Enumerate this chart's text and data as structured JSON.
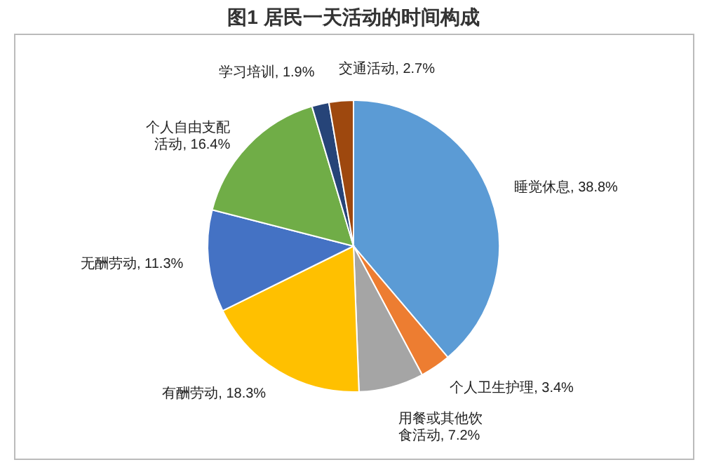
{
  "chart_data": {
    "type": "pie",
    "title": "图1  居民一天活动的时间构成",
    "categories": [
      "睡觉休息",
      "个人卫生护理",
      "用餐或其他饮食活动",
      "有酬劳动",
      "无酬劳动",
      "个人自由支配活动",
      "学习培训",
      "交通活动"
    ],
    "value_labels": [
      "38.8%",
      "3.4%",
      "7.2%",
      "18.3%",
      "11.3%",
      "16.4%",
      "1.9%",
      "2.7%"
    ],
    "values": [
      38.8,
      3.4,
      7.2,
      18.3,
      11.3,
      16.4,
      1.9,
      2.7
    ],
    "colors": [
      "#5b9bd5",
      "#ed7d31",
      "#a5a5a5",
      "#ffc000",
      "#4472c4",
      "#70ad47",
      "#264478",
      "#9e480e"
    ],
    "legend": false
  }
}
